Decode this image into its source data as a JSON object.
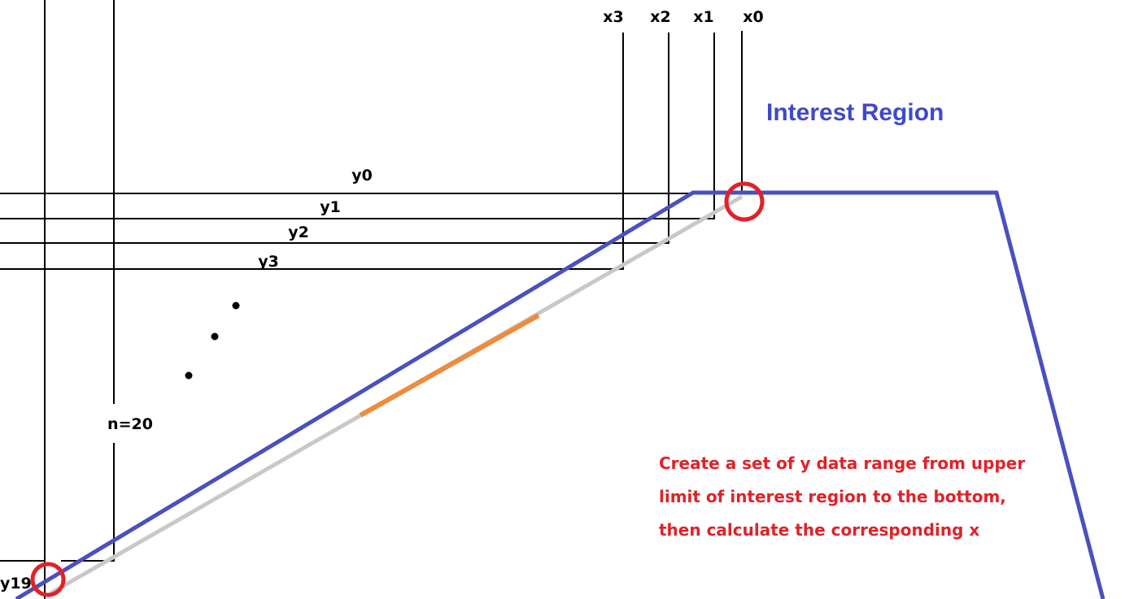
{
  "title": "Interest Region",
  "x_labels": [
    "x3",
    "x2",
    "x1",
    "x0"
  ],
  "y_labels": [
    "y0",
    "y1",
    "y2",
    "y3"
  ],
  "bottom_label": "y19",
  "n_label": "n=20",
  "note_lines": [
    "Create a set of y data range from upper",
    "limit of interest region to the bottom,",
    "then calculate the corresponding x"
  ],
  "colors": {
    "region": "#4a50c0",
    "grey_line": "#c8c8c8",
    "orange_segment": "#f08a3c",
    "circle": "#e02228",
    "note_text": "#e02228",
    "title_text": "#3f48cc",
    "grid": "#000000"
  }
}
